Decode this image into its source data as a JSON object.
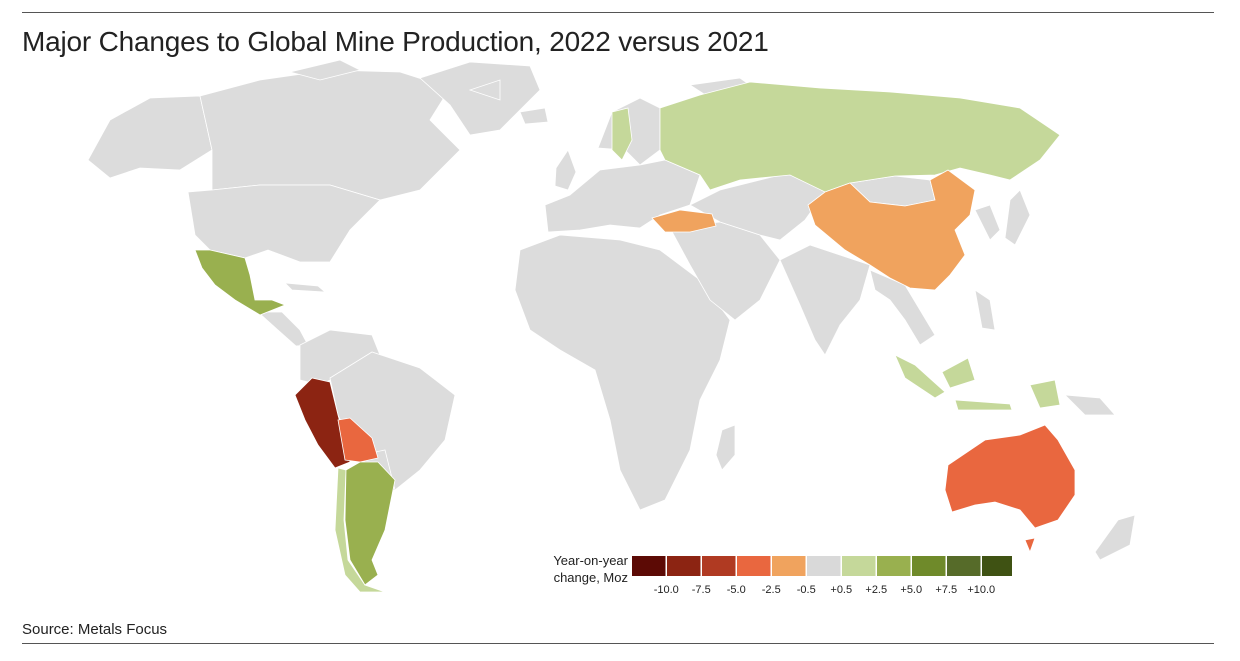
{
  "title": "Major Changes to Global Mine Production, 2022 versus 2021",
  "source": "Source: Metals Focus",
  "legend": {
    "title_line1": "Year-on-year",
    "title_line2": "change, Moz",
    "colors": [
      "#5c0a05",
      "#8c2412",
      "#b03a22",
      "#e9673f",
      "#f0a35e",
      "#d9d9d9",
      "#c5d89a",
      "#99b04f",
      "#6f8a2a",
      "#566b29",
      "#3f5213"
    ],
    "tick_labels": [
      "-10.0",
      "-7.5",
      "-5.0",
      "-2.5",
      "-0.5",
      "+0.5",
      "+2.5",
      "+5.0",
      "+7.5",
      "+10.0"
    ]
  },
  "neutral_color": "#dcdcdc",
  "highlighted_countries": [
    {
      "name_id": "peru",
      "color": "#8c2412"
    },
    {
      "name_id": "bolivia",
      "color": "#e9673f"
    },
    {
      "name_id": "australia",
      "color": "#e9673f"
    },
    {
      "name_id": "china",
      "color": "#f0a35e"
    },
    {
      "name_id": "turkey",
      "color": "#f0a35e"
    },
    {
      "name_id": "russia",
      "color": "#c5d89a"
    },
    {
      "name_id": "sweden",
      "color": "#c5d89a"
    },
    {
      "name_id": "indonesia",
      "color": "#c5d89a"
    },
    {
      "name_id": "mexico",
      "color": "#99b04f"
    },
    {
      "name_id": "argentina",
      "color": "#99b04f"
    },
    {
      "name_id": "chile",
      "color": "#c5d89a"
    }
  ]
}
